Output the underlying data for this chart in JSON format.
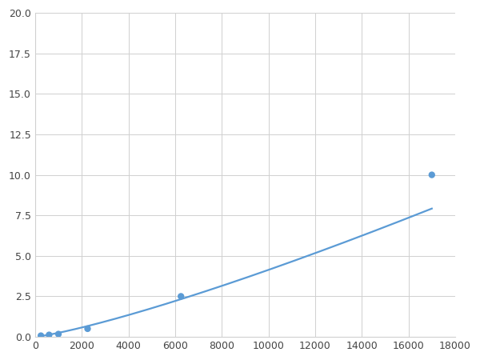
{
  "x_points": [
    250,
    600,
    1000,
    2250,
    6250,
    17000
  ],
  "y_points": [
    0.07,
    0.12,
    0.17,
    0.5,
    2.5,
    10.0
  ],
  "xlim": [
    0,
    18000
  ],
  "ylim": [
    0,
    20.0
  ],
  "xticks": [
    0,
    2000,
    4000,
    6000,
    8000,
    10000,
    12000,
    14000,
    16000,
    18000
  ],
  "yticks": [
    0.0,
    2.5,
    5.0,
    7.5,
    10.0,
    12.5,
    15.0,
    17.5,
    20.0
  ],
  "line_color": "#5B9BD5",
  "marker_color": "#5B9BD5",
  "bg_color": "#ffffff",
  "grid_color": "#d0d0d0",
  "marker_size": 6,
  "line_width": 1.6,
  "figsize": [
    6.0,
    4.5
  ],
  "dpi": 100
}
